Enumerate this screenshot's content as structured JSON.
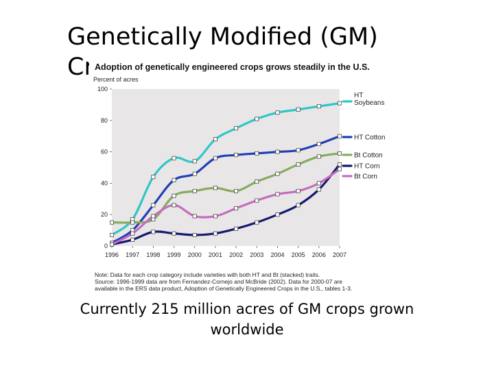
{
  "slide": {
    "title": "Genetically Modified (GM) Crops",
    "caption": "Currently 215 million acres of GM crops grown worldwide"
  },
  "chart_data": {
    "type": "line",
    "title": "Adoption of genetically engineered crops grows steadily in the U.S.",
    "ylabel": "Percent of acres",
    "xlabel": "",
    "x": [
      1996,
      1997,
      1998,
      1999,
      2000,
      2001,
      2002,
      2003,
      2004,
      2005,
      2006,
      2007
    ],
    "xtick_labels": [
      "1996",
      "1997",
      "1998",
      "1999",
      "2000",
      "2001",
      "2002",
      "2003",
      "2004",
      "2005",
      "2006",
      "2007"
    ],
    "yticks": [
      0,
      20,
      40,
      60,
      80,
      100
    ],
    "ylim": [
      0,
      100
    ],
    "grid": false,
    "legend_position": "right",
    "series": [
      {
        "name": "HT Soybeans",
        "label_lines": [
          "HT",
          "Soybeans"
        ],
        "color": "#2ec6c8",
        "values": [
          7,
          17,
          44,
          56,
          54,
          68,
          75,
          81,
          85,
          87,
          89,
          91
        ]
      },
      {
        "name": "HT Cotton",
        "label_lines": [
          "HT Cotton"
        ],
        "color": "#1f3fb8",
        "values": [
          2,
          10,
          26,
          42,
          46,
          56,
          58,
          59,
          60,
          61,
          65,
          70
        ]
      },
      {
        "name": "Bt Cotton",
        "label_lines": [
          "Bt Cotton"
        ],
        "color": "#86ab5e",
        "values": [
          15,
          15,
          17,
          32,
          35,
          37,
          35,
          41,
          46,
          52,
          57,
          59
        ]
      },
      {
        "name": "HT Corn",
        "label_lines": [
          "HT Corn"
        ],
        "color": "#141a6e",
        "values": [
          1,
          4,
          9,
          8,
          7,
          8,
          11,
          15,
          20,
          26,
          36,
          52
        ]
      },
      {
        "name": "Bt Corn",
        "label_lines": [
          "Bt Corn"
        ],
        "color": "#c46cc0",
        "values": [
          1,
          8,
          19,
          26,
          19,
          19,
          24,
          29,
          33,
          35,
          40,
          49
        ]
      }
    ],
    "notes": [
      "Note: Data for each crop category include varieties with both HT and Bt (stacked) traits.",
      "Source: 1996-1999 data are from Fernandez-Cornejo and McBride (2002). Data for 2000-07 are",
      "available in the ERS data product, Adoption of Genetically Engineered Crops in the U.S., tables 1-3."
    ]
  }
}
